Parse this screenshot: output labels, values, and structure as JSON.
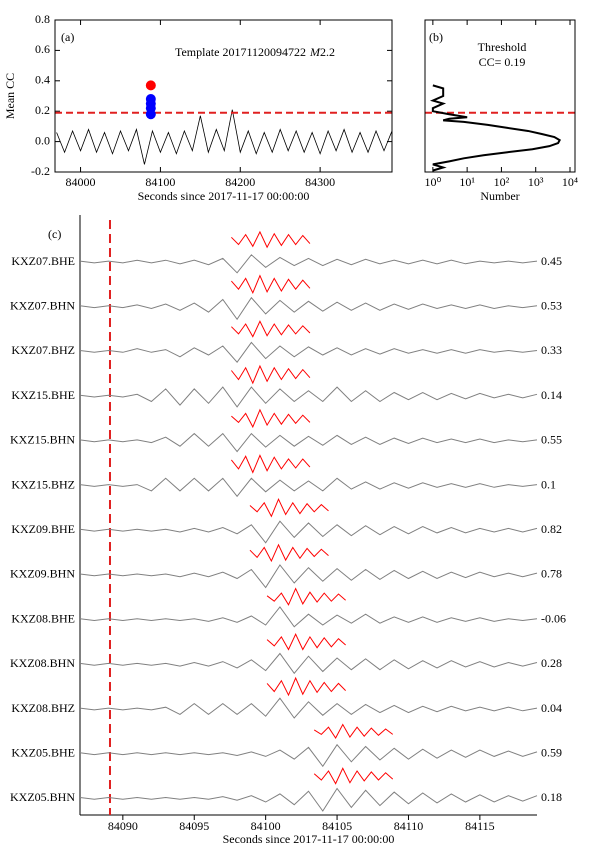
{
  "chart_data": [
    {
      "type": "line",
      "panel_label": "(a)",
      "title": "Template 20171120094722",
      "magnitude_symbol": "M",
      "magnitude": "2.2",
      "xlabel": "Seconds since 2017-11-17 00:00:00",
      "ylabel": "Mean CC",
      "xlim": [
        83968,
        84390
      ],
      "xticks": [
        84000,
        84100,
        84200,
        84300
      ],
      "ylim": [
        -0.2,
        0.8
      ],
      "yticks": [
        -0.2,
        {
          "value": 0,
          "label": "0.0"
        },
        0.2,
        0.4,
        0.6,
        0.8
      ],
      "threshold": 0.19,
      "threshold_color": "#e02020",
      "series": [
        {
          "name": "Mean CC",
          "color": "#000000",
          "x": [
            83970,
            83980,
            83990,
            84000,
            84010,
            84020,
            84030,
            84040,
            84050,
            84060,
            84070,
            84080,
            84090,
            84100,
            84110,
            84120,
            84130,
            84140,
            84150,
            84160,
            84170,
            84180,
            84190,
            84200,
            84210,
            84220,
            84230,
            84240,
            84250,
            84260,
            84270,
            84280,
            84290,
            84300,
            84310,
            84320,
            84330,
            84340,
            84350,
            84360,
            84370,
            84380,
            84390
          ],
          "values": [
            0.06,
            -0.07,
            0.07,
            -0.06,
            0.08,
            -0.07,
            0.06,
            -0.08,
            0.07,
            -0.06,
            0.08,
            -0.15,
            0.07,
            -0.07,
            0.06,
            -0.08,
            0.07,
            -0.06,
            0.17,
            -0.07,
            0.08,
            -0.06,
            0.21,
            -0.07,
            0.07,
            -0.08,
            0.06,
            -0.07,
            0.08,
            -0.06,
            0.07,
            -0.07,
            0.06,
            -0.08,
            0.07,
            -0.06,
            0.08,
            -0.07,
            0.06,
            -0.07,
            0.07,
            -0.06,
            0.07
          ]
        }
      ],
      "detections": [
        {
          "color": "#ff0000",
          "x": [
            84088
          ],
          "values": [
            0.37
          ]
        },
        {
          "color": "#0000ff",
          "x": [
            84088,
            84088,
            84088,
            84088
          ],
          "values": [
            0.28,
            0.25,
            0.22,
            0.18
          ]
        }
      ]
    },
    {
      "type": "profile",
      "panel_label": "(b)",
      "title": "Threshold",
      "subtitle": "CC= 0.19",
      "xlabel": "Number",
      "log_x": true,
      "xlim": [
        0.59,
        14000
      ],
      "xticks": [
        {
          "value": 1,
          "label": "10⁰"
        },
        {
          "value": 10,
          "label": "10¹"
        },
        {
          "value": 100,
          "label": "10²"
        },
        {
          "value": 1000,
          "label": "10³"
        },
        {
          "value": 10000,
          "label": "10⁴"
        }
      ],
      "ylim": [
        -0.2,
        0.8
      ],
      "threshold": 0.19,
      "threshold_color": "#e02020",
      "series": [
        {
          "name": "Histogram",
          "color": "#000000",
          "x": [
            1,
            2,
            2,
            1,
            2,
            1,
            1,
            3,
            10,
            3,
            2,
            8,
            40,
            150,
            600,
            1500,
            3500,
            5000,
            4500,
            2500,
            800,
            150,
            30,
            8,
            3,
            1,
            2,
            1
          ],
          "values": [
            0.37,
            0.35,
            0.3,
            0.27,
            0.25,
            0.22,
            0.2,
            0.18,
            0.16,
            0.15,
            0.14,
            0.13,
            0.11,
            0.09,
            0.07,
            0.05,
            0.03,
            0.01,
            -0.01,
            -0.03,
            -0.05,
            -0.07,
            -0.09,
            -0.11,
            -0.13,
            -0.15,
            -0.17,
            -0.19
          ]
        }
      ]
    },
    {
      "type": "waveform",
      "panel_label": "(c)",
      "xlabel": "Seconds since 2017-11-17 00:00:00",
      "xlim": [
        84087,
        84119
      ],
      "xticks": [
        84090,
        84095,
        84100,
        84105,
        84110,
        84115
      ],
      "marker_time": 84089.1,
      "marker_color": "#e02020",
      "trace_color": "#808080",
      "template_color": "#ff0000",
      "trace_t0": 84087,
      "trace_dt": 1,
      "template_dt": 0.5,
      "categories": [
        "KXZ07.BHE",
        "KXZ07.BHN",
        "KXZ07.BHZ",
        "KXZ15.BHE",
        "KXZ15.BHN",
        "KXZ15.BHZ",
        "KXZ09.BHE",
        "KXZ09.BHN",
        "KXZ08.BHE",
        "KXZ08.BHN",
        "KXZ08.BHZ",
        "KXZ05.BHE",
        "KXZ05.BHN"
      ],
      "values": [
        0.45,
        0.53,
        0.33,
        0.14,
        0.55,
        0.1,
        0.82,
        0.78,
        -0.06,
        0.28,
        0.04,
        0.59,
        0.18
      ],
      "traces": [
        [
          0.05,
          0.05,
          0.05,
          0.05,
          0.1,
          0.05,
          0.1,
          0.1,
          0.1,
          0.15,
          0.2,
          0.6,
          0.4,
          0.3,
          0.25,
          0.2,
          0.2,
          0.2,
          0.15,
          0.15,
          0.15,
          0.1,
          0.1,
          0.1,
          0.1,
          0.1,
          0.1,
          0.1,
          0.05,
          0.05,
          0.05,
          0.05,
          0.05
        ],
        [
          0.05,
          0.05,
          0.05,
          0.05,
          0.1,
          0.1,
          0.15,
          0.2,
          0.2,
          0.3,
          0.4,
          0.7,
          0.5,
          0.4,
          0.35,
          0.3,
          0.3,
          0.25,
          0.25,
          0.2,
          0.2,
          0.2,
          0.15,
          0.15,
          0.15,
          0.1,
          0.1,
          0.1,
          0.1,
          0.1,
          0.05,
          0.05,
          0.05
        ],
        [
          0.05,
          0.05,
          0.05,
          0.05,
          0.15,
          0.05,
          0.1,
          0.3,
          0.2,
          0.2,
          0.3,
          0.6,
          0.5,
          0.4,
          0.3,
          0.3,
          0.25,
          0.2,
          0.2,
          0.2,
          0.15,
          0.15,
          0.15,
          0.1,
          0.1,
          0.1,
          0.1,
          0.1,
          0.1,
          0.05,
          0.05,
          0.05,
          0.05
        ],
        [
          0.05,
          0.05,
          0.05,
          0.05,
          0.1,
          0.3,
          0.4,
          0.5,
          0.4,
          0.4,
          0.5,
          0.6,
          0.5,
          0.4,
          0.4,
          0.3,
          0.3,
          0.3,
          0.5,
          0.3,
          0.3,
          0.3,
          0.2,
          0.2,
          0.2,
          0.2,
          0.15,
          0.15,
          0.15,
          0.1,
          0.1,
          0.1,
          0.1
        ],
        [
          0.05,
          0.05,
          0.05,
          0.05,
          0.05,
          0.1,
          0.2,
          0.3,
          0.4,
          0.3,
          0.4,
          0.6,
          0.4,
          0.35,
          0.3,
          0.3,
          0.25,
          0.25,
          0.3,
          0.2,
          0.2,
          0.2,
          0.15,
          0.15,
          0.15,
          0.1,
          0.1,
          0.1,
          0.1,
          0.1,
          0.05,
          0.05,
          0.05
        ],
        [
          0.05,
          0.05,
          0.05,
          0.05,
          0.05,
          0.3,
          0.4,
          0.3,
          0.4,
          0.3,
          0.4,
          0.6,
          0.4,
          0.35,
          0.3,
          0.3,
          0.25,
          0.3,
          0.4,
          0.2,
          0.2,
          0.2,
          0.15,
          0.15,
          0.15,
          0.1,
          0.1,
          0.1,
          0.1,
          0.1,
          0.05,
          0.05,
          0.05
        ],
        [
          0.05,
          0.05,
          0.05,
          0.05,
          0.05,
          0.05,
          0.05,
          0.1,
          0.1,
          0.1,
          0.15,
          0.2,
          0.3,
          0.7,
          0.5,
          0.4,
          0.4,
          0.35,
          0.3,
          0.3,
          0.25,
          0.25,
          0.2,
          0.2,
          0.2,
          0.15,
          0.15,
          0.15,
          0.1,
          0.1,
          0.1,
          0.1,
          0.1
        ],
        [
          0.05,
          0.05,
          0.05,
          0.05,
          0.05,
          0.05,
          0.05,
          0.1,
          0.1,
          0.1,
          0.15,
          0.2,
          0.3,
          0.7,
          0.55,
          0.45,
          0.4,
          0.35,
          0.35,
          0.3,
          0.3,
          0.25,
          0.25,
          0.2,
          0.2,
          0.2,
          0.15,
          0.15,
          0.15,
          0.1,
          0.1,
          0.1,
          0.1
        ],
        [
          0.05,
          0.05,
          0.05,
          0.05,
          0.05,
          0.05,
          0.05,
          0.05,
          0.05,
          0.1,
          0.1,
          0.15,
          0.2,
          0.3,
          0.7,
          0.4,
          0.3,
          0.3,
          0.25,
          0.2,
          0.3,
          0.2,
          0.15,
          0.15,
          0.15,
          0.15,
          0.1,
          0.1,
          0.1,
          0.1,
          0.05,
          0.05,
          0.05
        ],
        [
          0.05,
          0.05,
          0.05,
          0.05,
          0.05,
          0.05,
          0.05,
          0.1,
          0.1,
          0.1,
          0.15,
          0.2,
          0.25,
          0.35,
          0.6,
          0.5,
          0.45,
          0.4,
          0.35,
          0.3,
          0.3,
          0.3,
          0.25,
          0.25,
          0.2,
          0.2,
          0.2,
          0.15,
          0.15,
          0.15,
          0.1,
          0.1,
          0.1
        ],
        [
          0.05,
          0.05,
          0.05,
          0.05,
          0.05,
          0.05,
          0.1,
          0.3,
          0.3,
          0.3,
          0.3,
          0.3,
          0.3,
          0.4,
          0.6,
          0.5,
          0.4,
          0.35,
          0.3,
          0.3,
          0.25,
          0.2,
          0.2,
          0.2,
          0.15,
          0.15,
          0.15,
          0.1,
          0.1,
          0.1,
          0.1,
          0.1,
          0.05
        ],
        [
          0.05,
          0.05,
          0.05,
          0.05,
          0.05,
          0.05,
          0.05,
          0.05,
          0.05,
          0.05,
          0.05,
          0.1,
          0.1,
          0.15,
          0.2,
          0.3,
          0.35,
          0.7,
          0.5,
          0.45,
          0.4,
          0.35,
          0.3,
          0.3,
          0.25,
          0.25,
          0.2,
          0.2,
          0.2,
          0.15,
          0.15,
          0.15,
          0.1
        ],
        [
          0.05,
          0.05,
          0.05,
          0.05,
          0.05,
          0.05,
          0.05,
          0.05,
          0.05,
          0.05,
          0.1,
          0.1,
          0.15,
          0.2,
          0.25,
          0.35,
          0.4,
          0.7,
          0.55,
          0.5,
          0.45,
          0.4,
          0.35,
          0.3,
          0.3,
          0.25,
          0.25,
          0.2,
          0.2,
          0.2,
          0.15,
          0.15,
          0.15
        ]
      ],
      "templates": [
        {
          "t0": 84097.6,
          "values": [
            0.3,
            0.5,
            0.6,
            0.7,
            0.9,
            0.8,
            0.7,
            0.6,
            0.6,
            0.5,
            0.5,
            0.4
          ]
        },
        {
          "t0": 84097.6,
          "values": [
            0.4,
            0.5,
            0.7,
            0.9,
            1.0,
            0.8,
            0.7,
            0.7,
            0.6,
            0.5,
            0.5,
            0.4
          ]
        },
        {
          "t0": 84097.6,
          "values": [
            0.3,
            0.5,
            0.6,
            0.8,
            0.9,
            0.7,
            0.6,
            0.6,
            0.5,
            0.5,
            0.4,
            0.4
          ]
        },
        {
          "t0": 84097.6,
          "values": [
            0.4,
            0.6,
            0.7,
            1.0,
            0.9,
            0.8,
            0.7,
            0.6,
            0.6,
            0.5,
            0.5,
            0.4
          ]
        },
        {
          "t0": 84097.6,
          "values": [
            0.3,
            0.4,
            0.6,
            0.9,
            1.0,
            0.7,
            0.6,
            0.6,
            0.5,
            0.5,
            0.4,
            0.4
          ]
        },
        {
          "t0": 84097.6,
          "values": [
            0.4,
            0.6,
            0.8,
            1.0,
            0.9,
            0.8,
            0.7,
            0.6,
            0.5,
            0.5,
            0.5,
            0.4
          ]
        },
        {
          "t0": 84098.9,
          "values": [
            0.3,
            0.4,
            0.6,
            0.9,
            1.0,
            0.7,
            0.6,
            0.6,
            0.5,
            0.4,
            0.4,
            0.3
          ]
        },
        {
          "t0": 84098.9,
          "values": [
            0.3,
            0.5,
            0.6,
            0.9,
            0.9,
            0.8,
            0.6,
            0.6,
            0.5,
            0.4,
            0.4,
            0.3
          ]
        },
        {
          "t0": 84100.1,
          "values": [
            0.2,
            0.4,
            0.5,
            0.8,
            1.0,
            0.7,
            0.6,
            0.5,
            0.5,
            0.4,
            0.4,
            0.3
          ]
        },
        {
          "t0": 84100.1,
          "values": [
            0.3,
            0.4,
            0.6,
            0.8,
            0.9,
            0.8,
            0.6,
            0.6,
            0.5,
            0.5,
            0.4,
            0.3
          ]
        },
        {
          "t0": 84100.1,
          "values": [
            0.4,
            0.5,
            0.7,
            0.9,
            1.0,
            0.8,
            0.7,
            0.6,
            0.5,
            0.5,
            0.4,
            0.4
          ]
        },
        {
          "t0": 84103.4,
          "values": [
            0.2,
            0.3,
            0.5,
            0.7,
            0.8,
            0.6,
            0.5,
            0.5,
            0.4,
            0.4,
            0.3,
            0.3
          ]
        },
        {
          "t0": 84103.4,
          "values": [
            0.3,
            0.4,
            0.6,
            0.8,
            0.9,
            0.7,
            0.6,
            0.5,
            0.5,
            0.4,
            0.4,
            0.3
          ]
        }
      ]
    }
  ]
}
